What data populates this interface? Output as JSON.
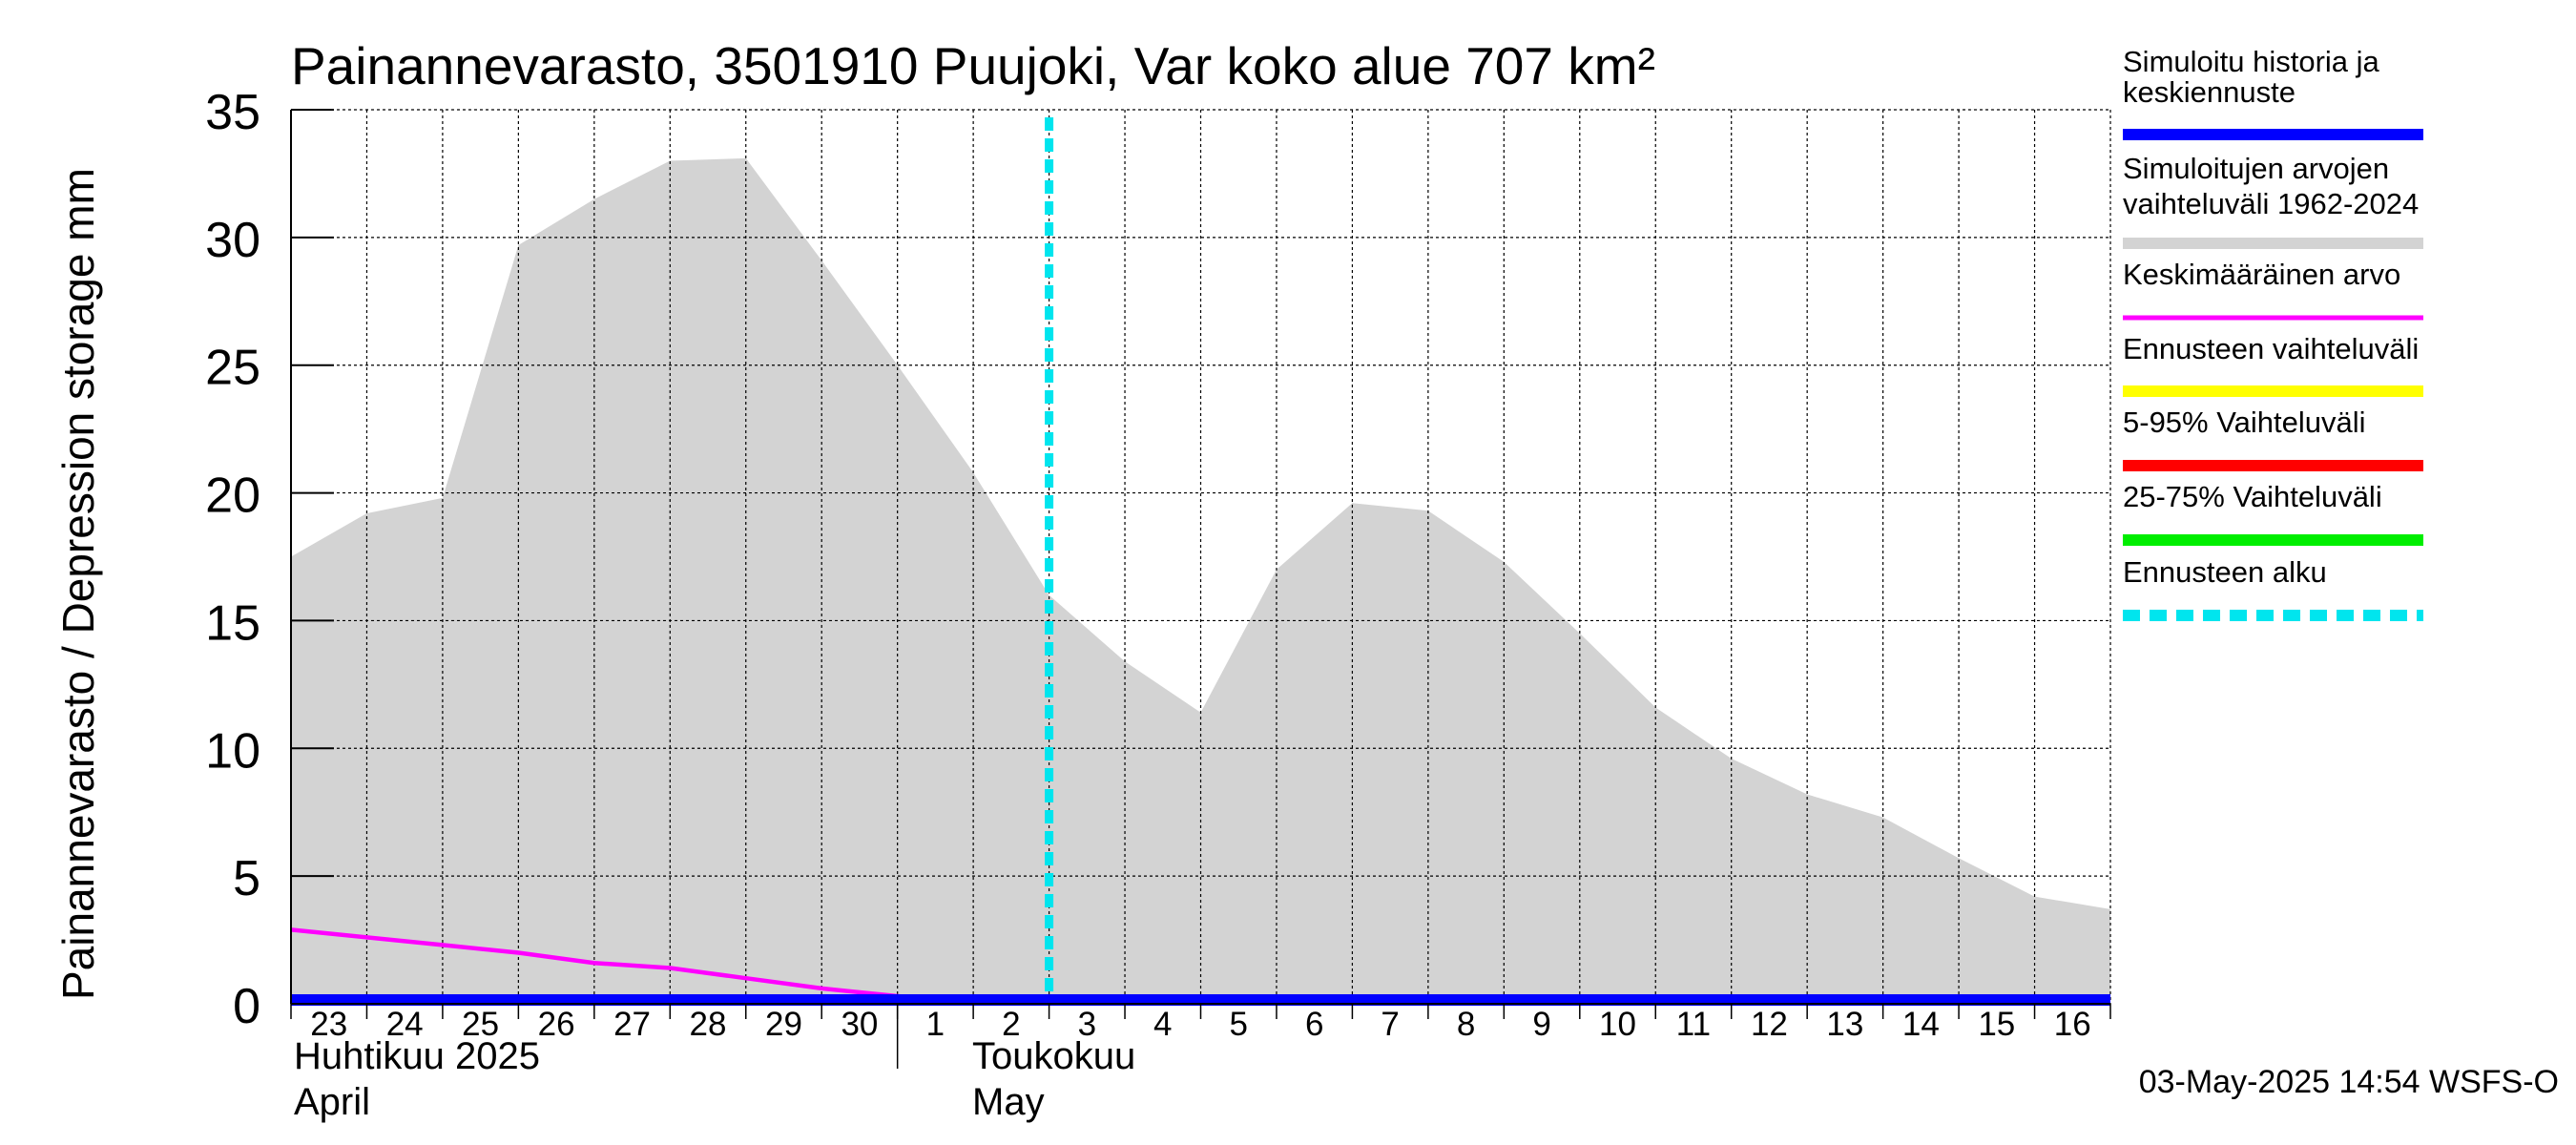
{
  "chart_data": {
    "type": "area",
    "title": "Painannevarasto, 3501910 Puujoki, Var koko alue 707 km²",
    "ylabel": "Painannevarasto / Depression storage    mm",
    "ylim": [
      0,
      35
    ],
    "yticks": [
      0,
      5,
      10,
      15,
      20,
      25,
      30,
      35
    ],
    "xlim": [
      "2025-04-23",
      "2025-05-16"
    ],
    "day_labels": [
      "23",
      "24",
      "25",
      "26",
      "27",
      "28",
      "29",
      "30",
      "1",
      "2",
      "3",
      "4",
      "5",
      "6",
      "7",
      "8",
      "9",
      "10",
      "11",
      "12",
      "13",
      "14",
      "15",
      "16"
    ],
    "month_labels": [
      {
        "fi": "Huhtikuu  2025",
        "en": "April"
      },
      {
        "fi": "Toukokuu",
        "en": "May"
      }
    ],
    "grid": true,
    "legend_position": "right",
    "forecast_start": "2025-05-03",
    "series": [
      {
        "name": "Simuloitujen arvojen vaihteluväli 1962-2024",
        "color": "#d3d3d3",
        "x": [
          "2025-04-23",
          "2025-04-24",
          "2025-04-25",
          "2025-04-26",
          "2025-04-27",
          "2025-04-28",
          "2025-04-29",
          "2025-04-30",
          "2025-05-01",
          "2025-05-02",
          "2025-05-03",
          "2025-05-04",
          "2025-05-05",
          "2025-05-06",
          "2025-05-07",
          "2025-05-08",
          "2025-05-09",
          "2025-05-10",
          "2025-05-11",
          "2025-05-12",
          "2025-05-13",
          "2025-05-14",
          "2025-05-15",
          "2025-05-16",
          "2025-05-17"
        ],
        "min": [
          0,
          0,
          0,
          0,
          0,
          0,
          0,
          0,
          0,
          0,
          0,
          0,
          0,
          0,
          0,
          0,
          0,
          0,
          0,
          0,
          0,
          0,
          0,
          0,
          0
        ],
        "max": [
          17.5,
          19.2,
          19.8,
          29.7,
          31.5,
          33.0,
          33.1,
          29.1,
          25.0,
          20.8,
          16.0,
          13.4,
          11.4,
          17.0,
          19.6,
          19.3,
          17.3,
          14.5,
          11.6,
          9.6,
          8.2,
          7.3,
          5.7,
          4.2,
          3.7
        ]
      },
      {
        "name": "Keskimääräinen arvo",
        "color": "#ff00ff",
        "x": [
          "2025-04-23",
          "2025-04-24",
          "2025-04-25",
          "2025-04-26",
          "2025-04-27",
          "2025-04-28",
          "2025-04-29",
          "2025-04-30",
          "2025-05-01",
          "2025-05-02",
          "2025-05-03",
          "2025-05-17"
        ],
        "values": [
          2.9,
          2.6,
          2.3,
          2.0,
          1.6,
          1.4,
          1.0,
          0.6,
          0.3,
          0.05,
          0.05,
          0.05
        ]
      },
      {
        "name": "Simuloitu historia ja keskiennuste",
        "color": "#0000ff",
        "x": [
          "2025-04-23",
          "2025-05-17"
        ],
        "values": [
          0,
          0
        ]
      }
    ],
    "legend": [
      {
        "label": "Simuloitu historia ja keskiennuste",
        "color": "#0000ff",
        "style": "solid"
      },
      {
        "label": "Simuloitujen arvojen vaihteluväli 1962-2024",
        "color": "#d3d3d3",
        "style": "solid"
      },
      {
        "label": "Keskimääräinen arvo",
        "color": "#ff00ff",
        "style": "solid"
      },
      {
        "label": "Ennusteen vaihteluväli",
        "color": "#ffff00",
        "style": "solid"
      },
      {
        "label": "5-95% Vaihteluväli",
        "color": "#ff0000",
        "style": "solid"
      },
      {
        "label": "25-75% Vaihteluväli",
        "color": "#00ee00",
        "style": "solid"
      },
      {
        "label": "Ennusteen alku",
        "color": "#00e5ee",
        "style": "dashed"
      }
    ],
    "footer": "03-May-2025 14:54 WSFS-O"
  }
}
